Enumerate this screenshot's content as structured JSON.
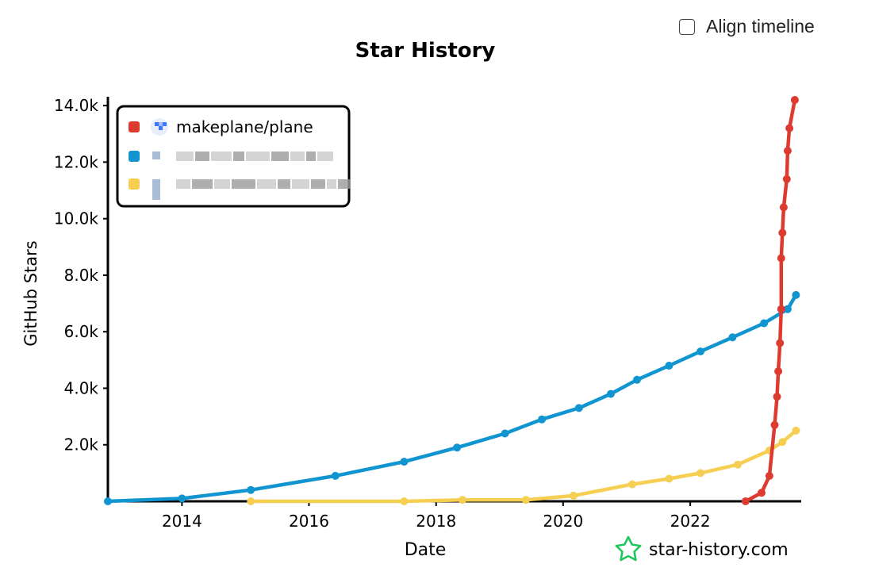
{
  "controls": {
    "align_timeline_label": "Align timeline",
    "align_timeline_checked": false
  },
  "watermark": {
    "text": "star-history.com",
    "icon": "star-history-logo-icon",
    "color": "#22c55e"
  },
  "chart_data": {
    "type": "line",
    "title": "Star History",
    "xlabel": "Date",
    "ylabel": "GitHub Stars",
    "x_type": "date",
    "xlim": [
      "2012-11-01",
      "2023-10-01"
    ],
    "ylim": [
      0,
      14200
    ],
    "x_ticks": [
      {
        "value": "2014-01-01",
        "label": "2014"
      },
      {
        "value": "2016-01-01",
        "label": "2016"
      },
      {
        "value": "2018-01-01",
        "label": "2018"
      },
      {
        "value": "2020-01-01",
        "label": "2020"
      },
      {
        "value": "2022-01-01",
        "label": "2022"
      }
    ],
    "y_ticks": [
      {
        "value": 2000,
        "label": "2.0k"
      },
      {
        "value": 4000,
        "label": "4.0k"
      },
      {
        "value": 6000,
        "label": "6.0k"
      },
      {
        "value": 8000,
        "label": "8.0k"
      },
      {
        "value": 10000,
        "label": "10.0k"
      },
      {
        "value": 12000,
        "label": "12.0k"
      },
      {
        "value": 14000,
        "label": "14.0k"
      }
    ],
    "grid": false,
    "legend_position": "top-left",
    "series": [
      {
        "name": "makeplane/plane",
        "color": "#dd3b30",
        "icon": "plane-logo-icon",
        "points": [
          {
            "x": "2022-11-15",
            "y": 0
          },
          {
            "x": "2023-02-15",
            "y": 300
          },
          {
            "x": "2023-04-01",
            "y": 900
          },
          {
            "x": "2023-05-01",
            "y": 2700
          },
          {
            "x": "2023-05-15",
            "y": 3700
          },
          {
            "x": "2023-05-22",
            "y": 4600
          },
          {
            "x": "2023-06-01",
            "y": 5600
          },
          {
            "x": "2023-06-08",
            "y": 6800
          },
          {
            "x": "2023-06-08",
            "y": 8600
          },
          {
            "x": "2023-06-15",
            "y": 9500
          },
          {
            "x": "2023-06-22",
            "y": 10400
          },
          {
            "x": "2023-07-10",
            "y": 11400
          },
          {
            "x": "2023-07-15",
            "y": 12400
          },
          {
            "x": "2023-07-25",
            "y": 13200
          },
          {
            "x": "2023-08-25",
            "y": 14200
          }
        ]
      },
      {
        "name": "",
        "color": "#1195d1",
        "icon": "redacted-icon",
        "points": [
          {
            "x": "2012-11-01",
            "y": 0
          },
          {
            "x": "2014-01-01",
            "y": 100
          },
          {
            "x": "2015-02-01",
            "y": 400
          },
          {
            "x": "2016-06-01",
            "y": 900
          },
          {
            "x": "2017-07-01",
            "y": 1400
          },
          {
            "x": "2018-05-01",
            "y": 1900
          },
          {
            "x": "2019-02-01",
            "y": 2400
          },
          {
            "x": "2019-09-01",
            "y": 2900
          },
          {
            "x": "2020-04-01",
            "y": 3300
          },
          {
            "x": "2020-10-01",
            "y": 3800
          },
          {
            "x": "2021-03-01",
            "y": 4300
          },
          {
            "x": "2021-09-01",
            "y": 4800
          },
          {
            "x": "2022-03-01",
            "y": 5300
          },
          {
            "x": "2022-09-01",
            "y": 5800
          },
          {
            "x": "2023-03-01",
            "y": 6300
          },
          {
            "x": "2023-07-15",
            "y": 6800
          },
          {
            "x": "2023-09-01",
            "y": 7300
          }
        ]
      },
      {
        "name": "",
        "color": "#f6cf52",
        "icon": "redacted-icon",
        "points": [
          {
            "x": "2015-02-01",
            "y": 0
          },
          {
            "x": "2017-07-01",
            "y": 0
          },
          {
            "x": "2018-06-01",
            "y": 50
          },
          {
            "x": "2019-06-01",
            "y": 50
          },
          {
            "x": "2020-03-01",
            "y": 200
          },
          {
            "x": "2021-02-01",
            "y": 600
          },
          {
            "x": "2021-09-01",
            "y": 800
          },
          {
            "x": "2022-03-01",
            "y": 1000
          },
          {
            "x": "2022-10-01",
            "y": 1300
          },
          {
            "x": "2023-04-01",
            "y": 1800
          },
          {
            "x": "2023-06-15",
            "y": 2100
          },
          {
            "x": "2023-09-01",
            "y": 2500
          }
        ]
      }
    ]
  }
}
